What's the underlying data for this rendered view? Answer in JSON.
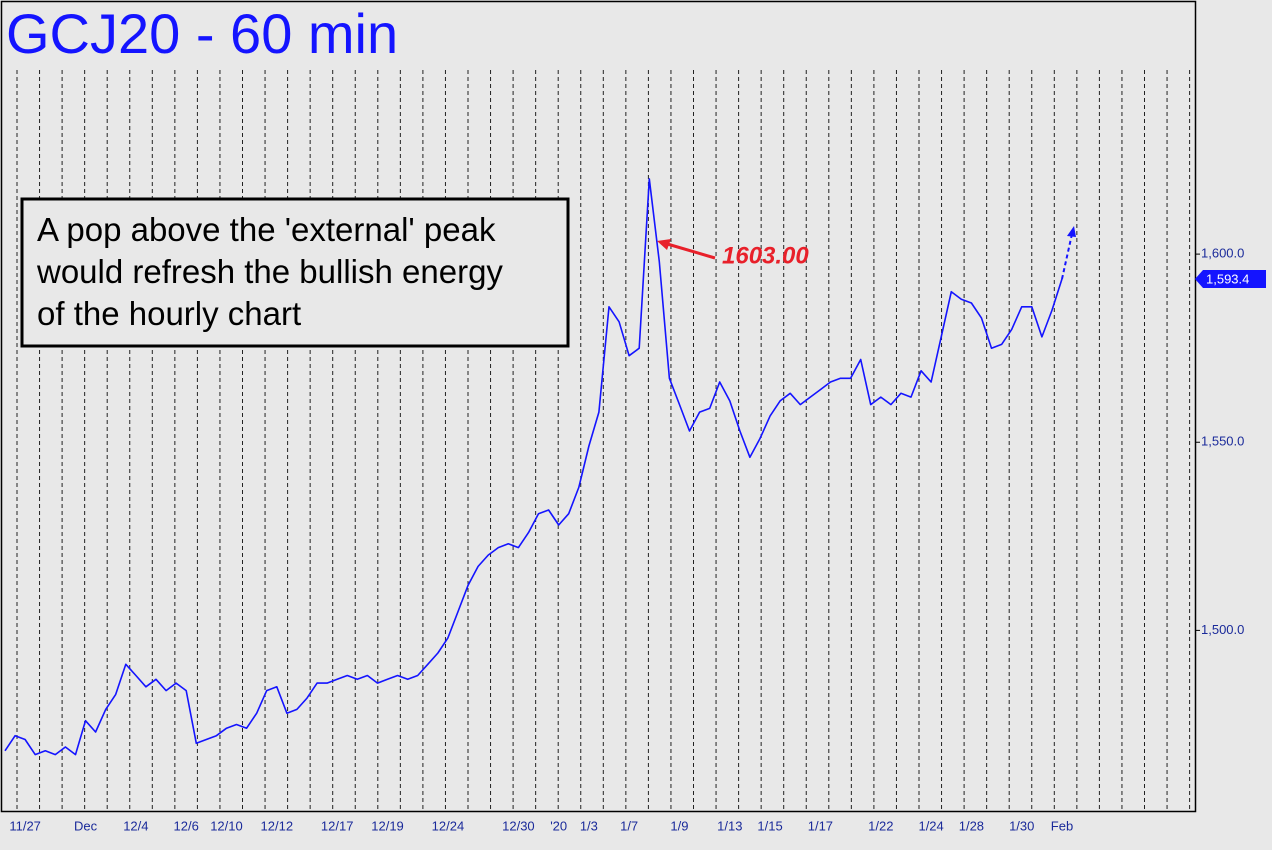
{
  "chart_data": {
    "type": "line",
    "title": "GCJ20 - 60 min",
    "annotation_box": [
      "A pop above the 'external' peak",
      "would refresh the bullish energy",
      "of the hourly chart"
    ],
    "annotation": "1603.00",
    "ylim": [
      1452,
      1667
    ],
    "yticks": [
      {
        "value": 1500,
        "label": "1,500.0"
      },
      {
        "value": 1550,
        "label": "1,550.0"
      },
      {
        "value": 1600,
        "label": "1,600.0"
      }
    ],
    "categories": [
      null,
      null,
      "11/27",
      null,
      null,
      null,
      null,
      null,
      "Dec",
      null,
      null,
      null,
      null,
      "12/4",
      null,
      null,
      null,
      null,
      "12/6",
      null,
      null,
      null,
      "12/10",
      null,
      null,
      null,
      null,
      "12/12",
      null,
      null,
      null,
      null,
      null,
      "12/17",
      null,
      null,
      null,
      null,
      "12/19",
      null,
      null,
      null,
      null,
      null,
      "12/24",
      null,
      null,
      null,
      null,
      null,
      null,
      "12/30",
      null,
      null,
      null,
      "'20",
      null,
      null,
      "1/3",
      null,
      null,
      null,
      "1/7",
      null,
      null,
      null,
      null,
      "1/9",
      null,
      null,
      null,
      null,
      "1/13",
      null,
      null,
      null,
      "1/15",
      null,
      null,
      null,
      null,
      "1/17",
      null,
      null,
      null,
      null,
      null,
      "1/22",
      null,
      null,
      null,
      null,
      "1/24",
      null,
      null,
      null,
      "1/28",
      null,
      null,
      null,
      null,
      "1/30",
      null,
      null,
      null,
      "Feb"
    ],
    "series": [
      {
        "name": "GCJ20",
        "color": "#1414ff",
        "values": [
          1468,
          1472,
          1471,
          1467,
          1468,
          1467,
          1469,
          1467,
          1476,
          1473,
          1479,
          1483,
          1491,
          1488,
          1485,
          1487,
          1484,
          1486,
          1484,
          1470,
          1471,
          1472,
          1474,
          1475,
          1474,
          1478,
          1484,
          1485,
          1478,
          1479,
          1482,
          1486,
          1486,
          1487,
          1488,
          1487,
          1488,
          1486,
          1487,
          1488,
          1487,
          1488,
          1491,
          1494,
          1498,
          1505,
          1512,
          1517,
          1520,
          1522,
          1523,
          1522,
          1526,
          1531,
          1532,
          1528,
          1531,
          1538,
          1549,
          1558,
          1586,
          1582,
          1573,
          1575,
          1620,
          1598,
          1567,
          1560,
          1553,
          1558,
          1559,
          1566,
          1561,
          1553,
          1546,
          1551,
          1557,
          1561,
          1563,
          1560,
          1562,
          1564,
          1566,
          1567,
          1567,
          1572,
          1560,
          1562,
          1560,
          1563,
          1562,
          1569,
          1566,
          1578,
          1590,
          1588,
          1587,
          1583,
          1575,
          1576,
          1580,
          1586,
          1586,
          1578,
          1585,
          1593.4
        ],
        "value_labels": [
          null,
          null,
          null,
          null,
          null,
          null,
          null,
          null,
          null,
          null,
          null,
          null,
          null,
          null,
          null,
          null,
          null,
          null,
          null,
          null,
          null,
          null,
          null,
          null,
          null,
          null,
          null,
          null,
          null,
          null,
          null,
          null,
          null,
          null,
          null,
          null,
          null,
          null,
          null,
          null,
          null,
          null,
          null,
          null,
          null,
          null,
          null,
          null,
          null,
          null,
          null,
          null,
          null,
          null,
          null,
          null,
          null,
          null,
          null,
          null,
          null,
          null,
          null,
          null,
          null,
          null,
          null,
          null,
          null,
          null,
          null,
          null,
          null,
          null,
          null,
          null,
          null,
          null,
          null,
          null,
          null,
          null,
          null,
          null,
          null,
          null,
          null,
          null,
          null,
          null,
          null,
          null,
          null,
          null,
          null,
          null,
          null,
          null,
          null,
          null,
          null,
          null,
          null,
          null,
          null,
          "1,593.4"
        ]
      }
    ]
  }
}
